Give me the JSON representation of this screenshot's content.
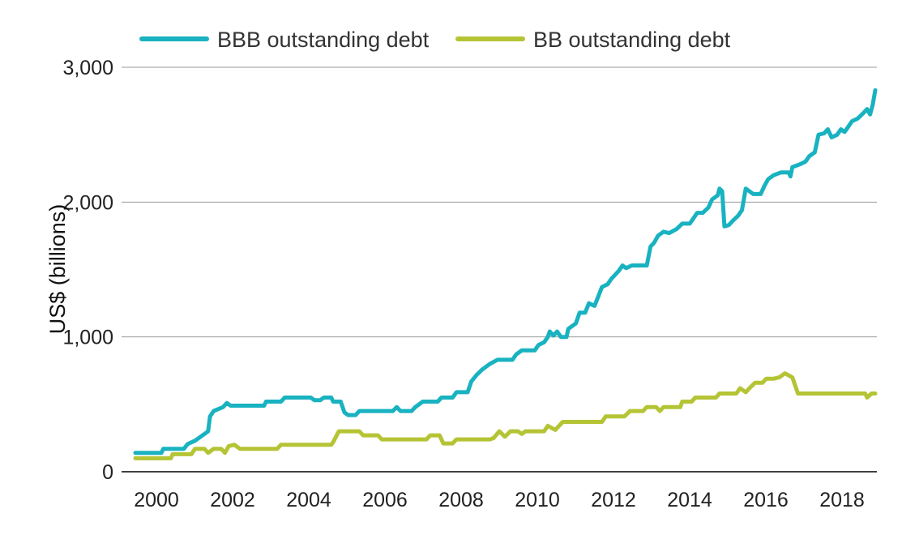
{
  "chart_data": {
    "type": "line",
    "ylabel": "US$ (billions)",
    "ylim": [
      0,
      3000
    ],
    "xlim": [
      1999.8,
      2019.0
    ],
    "y_ticks": [
      {
        "value": 0,
        "label": "0"
      },
      {
        "value": 1000,
        "label": "1,000"
      },
      {
        "value": 2000,
        "label": "2,000"
      },
      {
        "value": 3000,
        "label": "3,000"
      }
    ],
    "x_ticks": [
      {
        "value": 2000,
        "label": "2000"
      },
      {
        "value": 2002,
        "label": "2002"
      },
      {
        "value": 2004,
        "label": "2004"
      },
      {
        "value": 2006,
        "label": "2006"
      },
      {
        "value": 2008,
        "label": "2008"
      },
      {
        "value": 2010,
        "label": "2010"
      },
      {
        "value": 2012,
        "label": "2012"
      },
      {
        "value": 2014,
        "label": "2014"
      },
      {
        "value": 2016,
        "label": "2016"
      },
      {
        "value": 2018,
        "label": "2018"
      }
    ],
    "grid": "horizontal",
    "legend_position": "top",
    "series": [
      {
        "name": "BBB outstanding debt",
        "color": "#19b2c0",
        "points": [
          [
            2000.0,
            140
          ],
          [
            2000.7,
            140
          ],
          [
            2000.75,
            170
          ],
          [
            2001.3,
            170
          ],
          [
            2001.4,
            205
          ],
          [
            2001.6,
            230
          ],
          [
            2001.8,
            270
          ],
          [
            2001.95,
            300
          ],
          [
            2002.0,
            410
          ],
          [
            2002.1,
            450
          ],
          [
            2002.35,
            480
          ],
          [
            2002.45,
            510
          ],
          [
            2002.55,
            490
          ],
          [
            2002.8,
            490
          ],
          [
            2003.1,
            490
          ],
          [
            2003.45,
            490
          ],
          [
            2003.5,
            520
          ],
          [
            2003.9,
            520
          ],
          [
            2004.0,
            550
          ],
          [
            2004.7,
            550
          ],
          [
            2004.8,
            530
          ],
          [
            2004.95,
            530
          ],
          [
            2005.05,
            550
          ],
          [
            2005.25,
            550
          ],
          [
            2005.3,
            520
          ],
          [
            2005.5,
            520
          ],
          [
            2005.6,
            440
          ],
          [
            2005.7,
            420
          ],
          [
            2005.9,
            420
          ],
          [
            2006.0,
            450
          ],
          [
            2006.5,
            450
          ],
          [
            2006.9,
            450
          ],
          [
            2007.0,
            480
          ],
          [
            2007.1,
            450
          ],
          [
            2007.4,
            450
          ],
          [
            2007.5,
            480
          ],
          [
            2007.7,
            520
          ],
          [
            2008.1,
            520
          ],
          [
            2008.2,
            550
          ],
          [
            2008.5,
            550
          ],
          [
            2008.6,
            590
          ],
          [
            2008.9,
            590
          ],
          [
            2009.0,
            670
          ],
          [
            2009.15,
            720
          ],
          [
            2009.3,
            760
          ],
          [
            2009.5,
            800
          ],
          [
            2009.7,
            830
          ],
          [
            2010.1,
            830
          ],
          [
            2010.2,
            870
          ],
          [
            2010.35,
            900
          ],
          [
            2010.7,
            900
          ],
          [
            2010.8,
            940
          ],
          [
            2010.95,
            960
          ],
          [
            2011.05,
            1000
          ],
          [
            2011.1,
            1040
          ],
          [
            2011.2,
            1010
          ],
          [
            2011.3,
            1040
          ],
          [
            2011.4,
            1000
          ],
          [
            2011.55,
            1000
          ],
          [
            2011.6,
            1060
          ],
          [
            2011.8,
            1100
          ],
          [
            2011.9,
            1180
          ],
          [
            2012.05,
            1180
          ],
          [
            2012.15,
            1250
          ],
          [
            2012.3,
            1230
          ],
          [
            2012.4,
            1300
          ],
          [
            2012.5,
            1370
          ],
          [
            2012.65,
            1390
          ],
          [
            2012.75,
            1430
          ],
          [
            2012.85,
            1460
          ],
          [
            2012.95,
            1490
          ],
          [
            2013.05,
            1530
          ],
          [
            2013.15,
            1510
          ],
          [
            2013.3,
            1530
          ],
          [
            2013.7,
            1530
          ],
          [
            2013.8,
            1670
          ],
          [
            2013.9,
            1700
          ],
          [
            2014.0,
            1750
          ],
          [
            2014.15,
            1780
          ],
          [
            2014.3,
            1770
          ],
          [
            2014.5,
            1800
          ],
          [
            2014.65,
            1840
          ],
          [
            2014.85,
            1840
          ],
          [
            2014.95,
            1880
          ],
          [
            2015.05,
            1920
          ],
          [
            2015.2,
            1920
          ],
          [
            2015.35,
            1960
          ],
          [
            2015.45,
            2020
          ],
          [
            2015.6,
            2050
          ],
          [
            2015.65,
            2100
          ],
          [
            2015.72,
            2080
          ],
          [
            2015.78,
            1820
          ],
          [
            2015.9,
            1830
          ],
          [
            2016.0,
            1860
          ],
          [
            2016.15,
            1900
          ],
          [
            2016.25,
            1940
          ],
          [
            2016.35,
            2100
          ],
          [
            2016.45,
            2080
          ],
          [
            2016.55,
            2060
          ],
          [
            2016.75,
            2060
          ],
          [
            2016.85,
            2120
          ],
          [
            2016.95,
            2170
          ],
          [
            2017.1,
            2200
          ],
          [
            2017.3,
            2220
          ],
          [
            2017.5,
            2220
          ],
          [
            2017.55,
            2190
          ],
          [
            2017.6,
            2260
          ],
          [
            2017.8,
            2280
          ],
          [
            2017.95,
            2300
          ],
          [
            2018.05,
            2340
          ],
          [
            2018.2,
            2370
          ],
          [
            2018.3,
            2500
          ],
          [
            2018.45,
            2510
          ],
          [
            2018.55,
            2540
          ],
          [
            2018.65,
            2480
          ],
          [
            2018.8,
            2500
          ],
          [
            2018.9,
            2540
          ],
          [
            2019.0,
            2520
          ],
          [
            2019.1,
            2560
          ],
          [
            2019.2,
            2600
          ],
          [
            2019.35,
            2620
          ],
          [
            2019.5,
            2660
          ],
          [
            2019.6,
            2690
          ],
          [
            2019.68,
            2650
          ],
          [
            2019.75,
            2720
          ],
          [
            2019.82,
            2830
          ]
        ]
      },
      {
        "name": "BB outstanding debt",
        "color": "#b5c435",
        "points": [
          [
            2000.0,
            100
          ],
          [
            2000.6,
            100
          ],
          [
            2000.95,
            100
          ],
          [
            2001.0,
            130
          ],
          [
            2001.5,
            130
          ],
          [
            2001.6,
            170
          ],
          [
            2001.85,
            170
          ],
          [
            2001.95,
            140
          ],
          [
            2002.1,
            170
          ],
          [
            2002.3,
            170
          ],
          [
            2002.4,
            140
          ],
          [
            2002.5,
            190
          ],
          [
            2002.65,
            200
          ],
          [
            2002.8,
            170
          ],
          [
            2003.1,
            170
          ],
          [
            2003.6,
            170
          ],
          [
            2003.8,
            170
          ],
          [
            2003.9,
            200
          ],
          [
            2004.3,
            200
          ],
          [
            2004.8,
            200
          ],
          [
            2005.25,
            200
          ],
          [
            2005.3,
            220
          ],
          [
            2005.45,
            300
          ],
          [
            2006.0,
            300
          ],
          [
            2006.1,
            270
          ],
          [
            2006.5,
            270
          ],
          [
            2006.6,
            240
          ],
          [
            2007.2,
            240
          ],
          [
            2007.6,
            240
          ],
          [
            2007.8,
            240
          ],
          [
            2007.9,
            270
          ],
          [
            2008.15,
            270
          ],
          [
            2008.25,
            210
          ],
          [
            2008.5,
            210
          ],
          [
            2008.6,
            240
          ],
          [
            2009.2,
            240
          ],
          [
            2009.5,
            240
          ],
          [
            2009.6,
            250
          ],
          [
            2009.75,
            300
          ],
          [
            2009.9,
            260
          ],
          [
            2010.05,
            300
          ],
          [
            2010.25,
            300
          ],
          [
            2010.35,
            280
          ],
          [
            2010.45,
            300
          ],
          [
            2010.8,
            300
          ],
          [
            2010.95,
            300
          ],
          [
            2011.05,
            340
          ],
          [
            2011.25,
            310
          ],
          [
            2011.45,
            370
          ],
          [
            2011.9,
            370
          ],
          [
            2012.4,
            370
          ],
          [
            2012.5,
            370
          ],
          [
            2012.6,
            410
          ],
          [
            2013.1,
            410
          ],
          [
            2013.25,
            450
          ],
          [
            2013.6,
            450
          ],
          [
            2013.7,
            480
          ],
          [
            2013.95,
            480
          ],
          [
            2014.05,
            450
          ],
          [
            2014.15,
            480
          ],
          [
            2014.6,
            480
          ],
          [
            2014.65,
            520
          ],
          [
            2014.9,
            520
          ],
          [
            2015.0,
            550
          ],
          [
            2015.55,
            550
          ],
          [
            2015.65,
            580
          ],
          [
            2016.1,
            580
          ],
          [
            2016.2,
            620
          ],
          [
            2016.35,
            590
          ],
          [
            2016.45,
            620
          ],
          [
            2016.6,
            660
          ],
          [
            2016.8,
            660
          ],
          [
            2016.9,
            690
          ],
          [
            2017.1,
            690
          ],
          [
            2017.25,
            700
          ],
          [
            2017.4,
            730
          ],
          [
            2017.6,
            700
          ],
          [
            2017.75,
            580
          ],
          [
            2017.9,
            580
          ],
          [
            2018.5,
            580
          ],
          [
            2019.0,
            580
          ],
          [
            2019.55,
            580
          ],
          [
            2019.6,
            550
          ],
          [
            2019.72,
            580
          ],
          [
            2019.82,
            580
          ]
        ]
      }
    ]
  }
}
